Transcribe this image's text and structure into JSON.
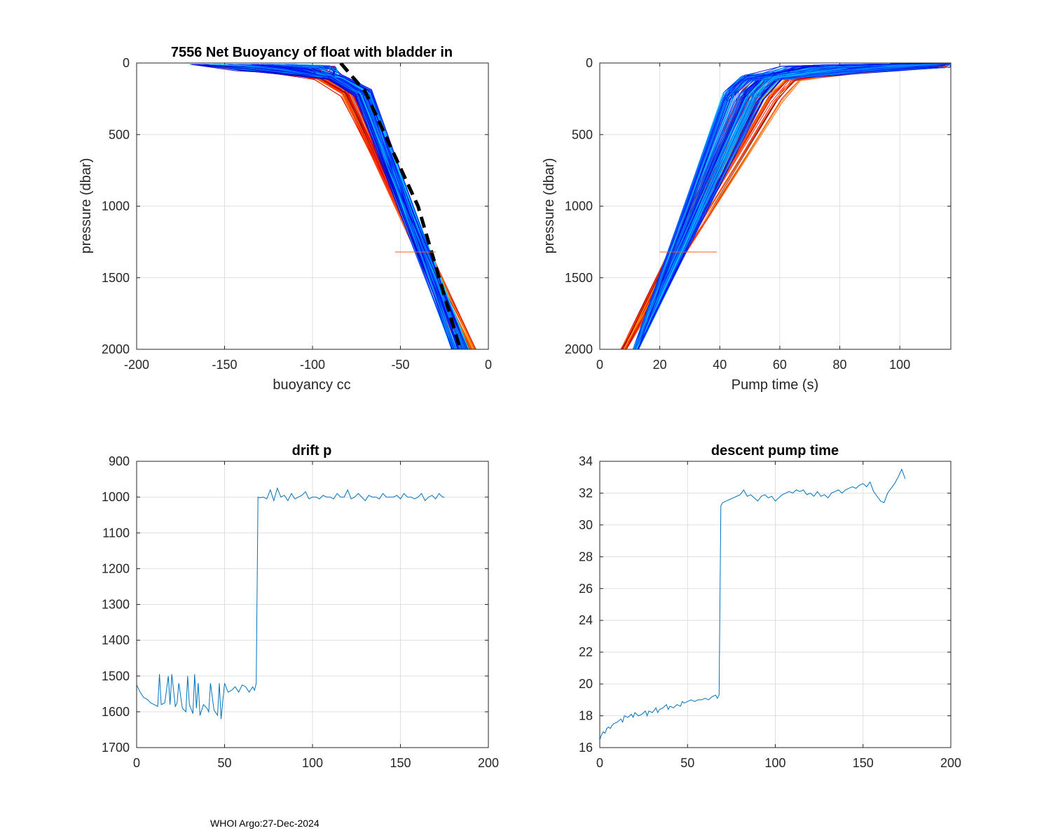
{
  "footer": "WHOI Argo:27-Dec-2024",
  "colors": {
    "profile_blue": "#0000ff",
    "series_blue": "#0072bd",
    "fit_black": "#000000",
    "outlier_orange": "#ff5a1e"
  },
  "chart_data": [
    {
      "id": "buoyancy",
      "type": "line",
      "title": "7556 Net Buoyancy of float with bladder in",
      "xlabel": "buoyancy cc",
      "ylabel": "pressure (dbar)",
      "xlim": [
        -200,
        0
      ],
      "ylim": [
        0,
        2000
      ],
      "y_reversed": true,
      "xticks": [
        -200,
        -150,
        -100,
        -50,
        0
      ],
      "yticks": [
        0,
        500,
        1000,
        1500,
        2000
      ],
      "grid": true,
      "profile_count": 175,
      "colormap": "jet (later profiles blue, earlier red)",
      "profile_model": {
        "surface_buoyancy": -165,
        "knee": [
          -70,
          200
        ],
        "deep": [
          -12,
          2000
        ]
      },
      "fit_line": [
        [
          -84,
          0
        ],
        [
          -70,
          200
        ],
        [
          -40,
          1000
        ],
        [
          -16,
          2000
        ]
      ],
      "outlier": {
        "x": [
          -53,
          -30
        ],
        "y": 1320
      }
    },
    {
      "id": "pump",
      "type": "line",
      "title": "",
      "xlabel": "Pump time (s)",
      "ylabel": "pressure (dbar)",
      "xlim": [
        0,
        117
      ],
      "ylim": [
        0,
        2000
      ],
      "y_reversed": true,
      "xticks": [
        0,
        20,
        40,
        60,
        80,
        100
      ],
      "yticks": [
        0,
        500,
        1000,
        1500,
        2000
      ],
      "grid": true,
      "profile_count": 175,
      "colormap": "jet (later profiles blue, earlier red)",
      "profile_model": {
        "surface_pump_time": 117,
        "knee": [
          52,
          220
        ],
        "deep": [
          9,
          2000
        ]
      },
      "outlier": {
        "x": [
          20,
          39
        ],
        "y": 1320
      }
    },
    {
      "id": "drift",
      "type": "line",
      "title": "drift p",
      "xlabel": "",
      "ylabel": "",
      "xlim": [
        0,
        200
      ],
      "ylim": [
        900,
        1700
      ],
      "y_reversed": true,
      "xticks": [
        0,
        50,
        100,
        150,
        200
      ],
      "yticks": [
        900,
        1000,
        1100,
        1200,
        1300,
        1400,
        1500,
        1600,
        1700
      ],
      "grid": true,
      "series": [
        {
          "name": "drift p",
          "x": [
            0,
            2,
            4,
            6,
            8,
            10,
            12,
            13,
            14,
            16,
            18,
            19,
            20,
            22,
            23,
            24,
            26,
            28,
            29,
            30,
            32,
            33,
            34,
            35,
            36,
            38,
            40,
            41,
            42,
            44,
            46,
            47,
            48,
            50,
            52,
            54,
            56,
            58,
            60,
            62,
            64,
            66,
            67,
            68,
            69,
            70,
            72,
            74,
            76,
            78,
            80,
            82,
            84,
            86,
            88,
            90,
            92,
            94,
            96,
            98,
            100,
            102,
            104,
            106,
            108,
            110,
            112,
            114,
            116,
            118,
            120,
            122,
            124,
            126,
            128,
            130,
            132,
            134,
            136,
            138,
            140,
            142,
            144,
            146,
            148,
            150,
            152,
            154,
            156,
            158,
            160,
            162,
            164,
            166,
            168,
            170,
            172,
            174,
            175
          ],
          "y": [
            1525,
            1545,
            1560,
            1565,
            1575,
            1580,
            1585,
            1495,
            1580,
            1575,
            1500,
            1580,
            1495,
            1585,
            1575,
            1520,
            1590,
            1600,
            1500,
            1580,
            1605,
            1495,
            1590,
            1520,
            1610,
            1580,
            1590,
            1600,
            1520,
            1595,
            1610,
            1520,
            1620,
            1520,
            1545,
            1540,
            1530,
            1545,
            1525,
            1530,
            1545,
            1530,
            1540,
            1520,
            1000,
            1002,
            1000,
            1005,
            980,
            1010,
            975,
            1000,
            995,
            1010,
            990,
            1005,
            1000,
            995,
            985,
            1005,
            1000,
            1000,
            1005,
            995,
            1000,
            1000,
            1005,
            990,
            1000,
            1000,
            980,
            1005,
            1000,
            990,
            1000,
            1010,
            995,
            1000,
            1000,
            1005,
            990,
            1000,
            1000,
            1000,
            995,
            1005,
            990,
            1000,
            1000,
            1005,
            1000,
            990,
            1010,
            1000,
            995,
            1005,
            990,
            1000,
            1000
          ]
        }
      ]
    },
    {
      "id": "descent",
      "type": "line",
      "title": "descent pump time",
      "xlabel": "",
      "ylabel": "",
      "xlim": [
        0,
        200
      ],
      "ylim": [
        16,
        34
      ],
      "y_reversed": false,
      "xticks": [
        0,
        50,
        100,
        150,
        200
      ],
      "yticks": [
        16,
        18,
        20,
        22,
        24,
        26,
        28,
        30,
        32,
        34
      ],
      "grid": true,
      "series": [
        {
          "name": "descent pump time",
          "x": [
            0,
            1,
            2,
            3,
            4,
            5,
            6,
            7,
            8,
            10,
            12,
            13,
            14,
            16,
            18,
            19,
            20,
            22,
            24,
            26,
            27,
            28,
            30,
            32,
            33,
            34,
            36,
            38,
            39,
            40,
            42,
            44,
            46,
            47,
            48,
            50,
            52,
            54,
            56,
            58,
            60,
            62,
            64,
            66,
            67,
            68,
            69,
            70,
            72,
            74,
            76,
            78,
            80,
            82,
            84,
            86,
            88,
            90,
            92,
            94,
            96,
            98,
            100,
            102,
            104,
            106,
            108,
            110,
            112,
            114,
            116,
            118,
            120,
            122,
            124,
            126,
            128,
            130,
            132,
            134,
            136,
            138,
            140,
            142,
            144,
            146,
            148,
            150,
            152,
            154,
            156,
            158,
            160,
            162,
            164,
            166,
            168,
            170,
            172,
            174
          ],
          "y": [
            16.5,
            16.8,
            17.0,
            16.9,
            17.2,
            17.3,
            17.2,
            17.4,
            17.5,
            17.6,
            17.8,
            17.6,
            18.0,
            17.9,
            18.1,
            17.9,
            18.2,
            18.0,
            18.1,
            18.3,
            18.0,
            18.3,
            18.2,
            18.5,
            18.2,
            18.4,
            18.5,
            18.7,
            18.4,
            18.6,
            18.5,
            18.7,
            18.6,
            18.9,
            18.8,
            18.9,
            19.0,
            18.9,
            19.0,
            19.0,
            19.1,
            19.0,
            19.2,
            19.3,
            19.1,
            19.3,
            31.2,
            31.4,
            31.5,
            31.6,
            31.7,
            31.8,
            31.9,
            32.2,
            31.8,
            31.9,
            31.7,
            31.5,
            31.8,
            31.9,
            31.7,
            31.8,
            31.5,
            31.7,
            31.9,
            32.0,
            32.1,
            32.0,
            32.2,
            32.1,
            32.2,
            31.9,
            32.0,
            31.8,
            32.1,
            31.8,
            31.9,
            31.7,
            32.0,
            32.1,
            32.2,
            32.0,
            32.2,
            32.3,
            32.4,
            32.3,
            32.5,
            32.6,
            32.4,
            32.7,
            32.1,
            31.8,
            31.5,
            31.4,
            32.0,
            32.3,
            32.6,
            33.0,
            33.5,
            32.9
          ]
        }
      ]
    }
  ]
}
